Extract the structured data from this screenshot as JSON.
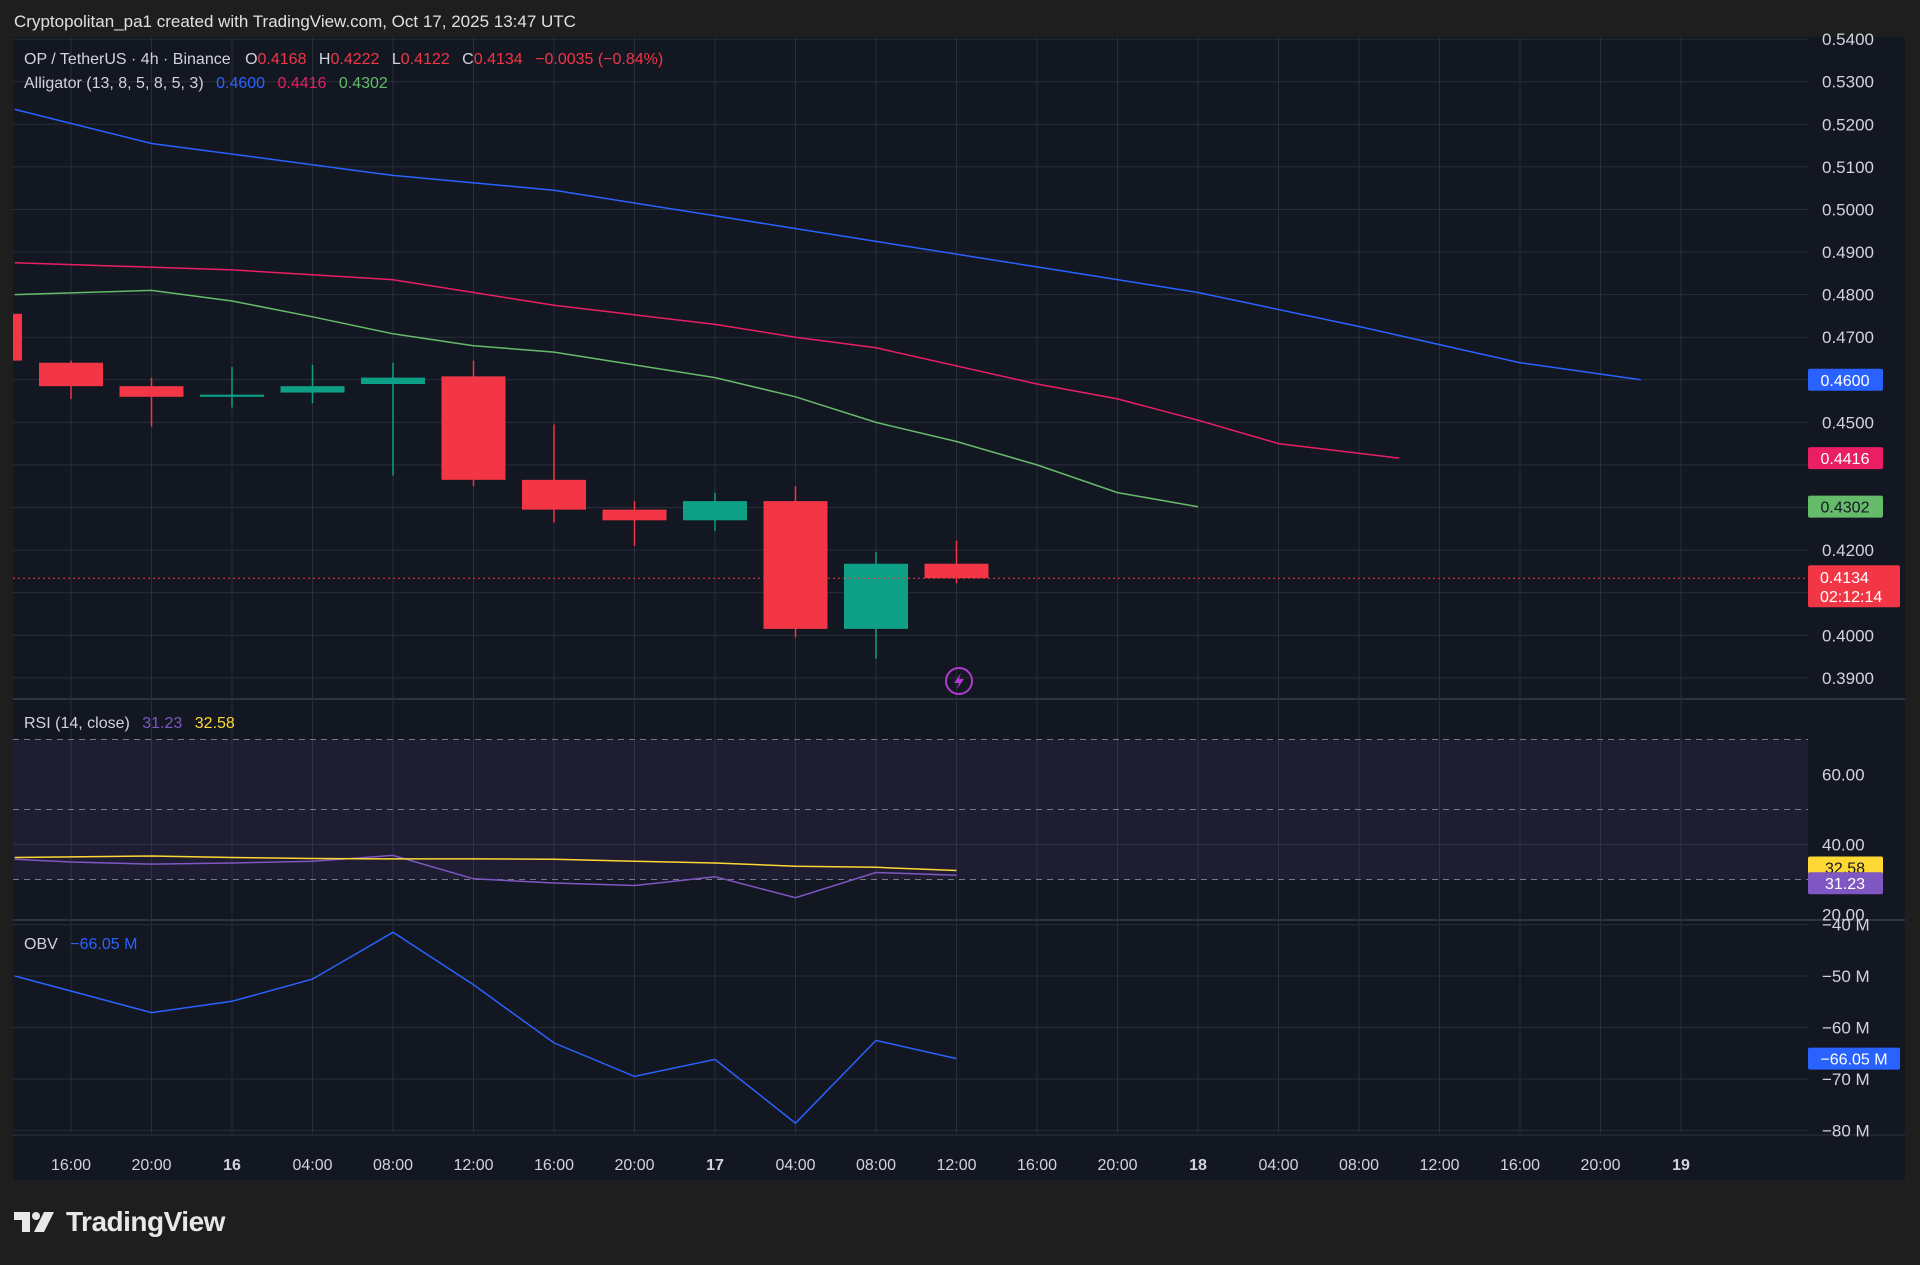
{
  "header": {
    "attribution": "Cryptopolitan_pa1 created with TradingView.com, Oct 17, 2025 13:47 UTC"
  },
  "footer": {
    "brand": "TradingView"
  },
  "colors": {
    "background": "#131722",
    "page": "#1e1e1e",
    "grid": "#2a2e39",
    "up": "#0e9f87",
    "down": "#f23645",
    "jaw": "#2962ff",
    "teeth": "#e91e63",
    "lips": "#66bb6a",
    "rsi": "#7e57c2",
    "rsi_ma": "#fdd835",
    "obv": "#2962ff"
  },
  "legend": {
    "symbol": "OP / TetherUS · 4h · Binance",
    "o_label": "O",
    "o_value": "0.4168",
    "h_label": "H",
    "h_value": "0.4222",
    "l_label": "L",
    "l_value": "0.4122",
    "c_label": "C",
    "c_value": "0.4134",
    "change": "−0.0035 (−0.84%)",
    "alligator_label": "Alligator (13, 8, 5, 8, 5, 3)",
    "jaw_value": "0.4600",
    "teeth_value": "0.4416",
    "lips_value": "0.4302",
    "rsi_label": "RSI (14, close)",
    "rsi_value": "31.23",
    "rsi_ma_value": "32.58",
    "obv_label": "OBV",
    "obv_value": "−66.05 M"
  },
  "price_badges": {
    "jaw": "0.4600",
    "teeth": "0.4416",
    "lips": "0.4302",
    "last": "0.4134",
    "countdown": "02:12:14",
    "rsi_ma": "32.58",
    "rsi": "31.23",
    "obv": "−66.05 M"
  },
  "chart_data": [
    {
      "type": "candlestick",
      "title": "OP / TetherUS · 4h · Binance",
      "x_tick_labels": [
        "16:00",
        "20:00",
        "16",
        "04:00",
        "08:00",
        "12:00",
        "16:00",
        "20:00",
        "17",
        "04:00",
        "08:00",
        "12:00",
        "16:00",
        "20:00",
        "18",
        "04:00",
        "08:00",
        "12:00",
        "16:00",
        "20:00",
        "19"
      ],
      "y_tick_labels": [
        "0.5400",
        "0.5300",
        "0.5200",
        "0.5100",
        "0.5000",
        "0.4900",
        "0.4800",
        "0.4700",
        "0.4500",
        "0.4200",
        "0.4000",
        "0.3900"
      ],
      "y_ticks": [
        0.54,
        0.53,
        0.52,
        0.51,
        0.5,
        0.49,
        0.48,
        0.47,
        0.46,
        0.45,
        0.44,
        0.43,
        0.42,
        0.41,
        0.4,
        0.39
      ],
      "ylim": [
        0.3855,
        0.5405
      ],
      "candles": [
        {
          "t": -0.35,
          "o": 0.4755,
          "h": 0.4755,
          "l": 0.4645,
          "c": 0.4645
        },
        {
          "t": 0,
          "o": 0.464,
          "h": 0.4645,
          "l": 0.4555,
          "c": 0.4585
        },
        {
          "t": 1,
          "o": 0.4585,
          "h": 0.4605,
          "l": 0.449,
          "c": 0.456
        },
        {
          "t": 2,
          "o": 0.456,
          "h": 0.463,
          "l": 0.4535,
          "c": 0.4565
        },
        {
          "t": 3,
          "o": 0.457,
          "h": 0.4635,
          "l": 0.4545,
          "c": 0.4585
        },
        {
          "t": 4,
          "o": 0.459,
          "h": 0.464,
          "l": 0.4375,
          "c": 0.4605
        },
        {
          "t": 5,
          "o": 0.4608,
          "h": 0.4645,
          "l": 0.435,
          "c": 0.4365
        },
        {
          "t": 6,
          "o": 0.4365,
          "h": 0.4495,
          "l": 0.4265,
          "c": 0.4295
        },
        {
          "t": 7,
          "o": 0.4295,
          "h": 0.4315,
          "l": 0.421,
          "c": 0.427
        },
        {
          "t": 8,
          "o": 0.427,
          "h": 0.4335,
          "l": 0.4245,
          "c": 0.4315
        },
        {
          "t": 9,
          "o": 0.4315,
          "h": 0.435,
          "l": 0.3995,
          "c": 0.4015
        },
        {
          "t": 10,
          "o": 0.4015,
          "h": 0.4195,
          "l": 0.3945,
          "c": 0.4168
        },
        {
          "t": 11,
          "o": 0.4168,
          "h": 0.4222,
          "l": 0.4122,
          "c": 0.4134
        }
      ],
      "series": [
        {
          "name": "Alligator Jaw",
          "t": [
            -0.7,
            1,
            4,
            6,
            8,
            10,
            12,
            14,
            16,
            18,
            19.5
          ],
          "values": [
            0.5235,
            0.5155,
            0.508,
            0.5045,
            0.4985,
            0.4925,
            0.4865,
            0.4805,
            0.4725,
            0.464,
            0.46
          ]
        },
        {
          "name": "Alligator Teeth",
          "t": [
            -0.7,
            2,
            4,
            6,
            8,
            9,
            10,
            12,
            13,
            14,
            15,
            16.5
          ],
          "values": [
            0.4875,
            0.4858,
            0.4835,
            0.4775,
            0.473,
            0.47,
            0.4675,
            0.459,
            0.4555,
            0.4505,
            0.445,
            0.4416
          ]
        },
        {
          "name": "Alligator Lips",
          "t": [
            -0.7,
            1,
            2,
            3,
            4,
            5,
            6,
            7,
            8,
            9,
            10,
            11,
            12,
            13,
            14
          ],
          "values": [
            0.48,
            0.481,
            0.4785,
            0.4748,
            0.4708,
            0.468,
            0.4665,
            0.4635,
            0.4605,
            0.456,
            0.45,
            0.4455,
            0.44,
            0.4335,
            0.4302
          ]
        }
      ],
      "last_price": 0.4134
    },
    {
      "type": "line",
      "title": "RSI (14, close)",
      "y_tick_labels": [
        "60.00",
        "40.00",
        "20.00"
      ],
      "ylim": [
        19,
        81
      ],
      "band": [
        30,
        70
      ],
      "midline": 50,
      "series": [
        {
          "name": "RSI",
          "t": [
            -0.7,
            0,
            1,
            2,
            3,
            4,
            5,
            6,
            7,
            8,
            9,
            10,
            11
          ],
          "values": [
            35.8,
            35.0,
            34.4,
            34.7,
            35.2,
            36.9,
            30.2,
            29.0,
            28.3,
            30.8,
            24.8,
            32.0,
            31.23
          ]
        },
        {
          "name": "RSI-based MA",
          "t": [
            -0.7,
            1,
            2,
            3,
            4,
            5,
            6,
            7,
            8,
            9,
            10,
            11
          ],
          "values": [
            36.3,
            36.7,
            36.3,
            36.0,
            35.9,
            35.9,
            35.8,
            35.2,
            34.7,
            33.8,
            33.5,
            32.58
          ]
        }
      ]
    },
    {
      "type": "line",
      "title": "OBV",
      "y_tick_labels": [
        "−40 M",
        "−50 M",
        "−60 M",
        "−70 M",
        "−80 M"
      ],
      "ylim": [
        -80.5,
        -39.5
      ],
      "series": [
        {
          "name": "OBV",
          "t": [
            -0.7,
            1,
            2,
            3,
            4,
            5,
            6,
            7,
            8,
            9,
            10,
            11
          ],
          "values": [
            -50.0,
            -57.1,
            -54.9,
            -50.6,
            -41.5,
            -51.7,
            -63.0,
            -69.5,
            -66.2,
            -78.6,
            -62.5,
            -66.05
          ]
        }
      ]
    }
  ]
}
